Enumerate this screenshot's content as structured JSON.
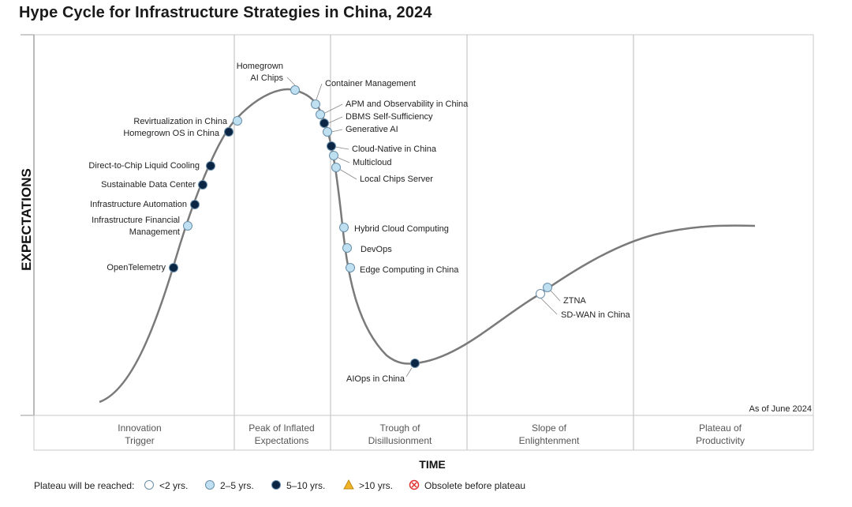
{
  "title": "Hype Cycle for Infrastructure Strategies in China, 2024",
  "chart_data": {
    "type": "scatter",
    "title": "Hype Cycle for Infrastructure Strategies in China, 2024",
    "xlabel": "TIME",
    "ylabel": "EXPECTATIONS",
    "as_of": "As of June 2024",
    "phases": [
      {
        "line1": "Innovation",
        "line2": "Trigger"
      },
      {
        "line1": "Peak of Inflated",
        "line2": "Expectations"
      },
      {
        "line1": "Trough of",
        "line2": "Disillusionment"
      },
      {
        "line1": "Slope of",
        "line2": "Enlightenment"
      },
      {
        "line1": "Plateau of",
        "line2": "Productivity"
      }
    ],
    "categories": {
      "lt2": {
        "label": "<2 yrs.",
        "fill": "#ffffff"
      },
      "2to5": {
        "label": "2–5 yrs.",
        "fill": "#bfe0f0"
      },
      "5to10": {
        "label": "5–10 yrs.",
        "fill": "#0b2545"
      },
      "gt10": {
        "label": ">10 yrs.",
        "fill": "#f0b429"
      },
      "obsolete": {
        "label": "Obsolete before plateau",
        "fill": "#e03030"
      }
    },
    "legend_title": "Plateau will be reached:",
    "points": [
      {
        "name": "OpenTelemetry",
        "cat": "5to10"
      },
      {
        "name": "Infrastructure Financial Management",
        "cat": "2to5"
      },
      {
        "name": "Infrastructure Automation",
        "cat": "5to10"
      },
      {
        "name": "Sustainable Data Center",
        "cat": "5to10"
      },
      {
        "name": "Direct-to-Chip Liquid Cooling",
        "cat": "5to10"
      },
      {
        "name": "Homegrown OS in China",
        "cat": "5to10"
      },
      {
        "name": "Revirtualization in China",
        "cat": "2to5"
      },
      {
        "name": "Homegrown AI Chips",
        "cat": "2to5"
      },
      {
        "name": "Container Management",
        "cat": "2to5"
      },
      {
        "name": "APM and Observability in China",
        "cat": "2to5"
      },
      {
        "name": "DBMS Self-Sufficiency",
        "cat": "5to10"
      },
      {
        "name": "Generative AI",
        "cat": "2to5"
      },
      {
        "name": "Cloud-Native in China",
        "cat": "5to10"
      },
      {
        "name": "Multicloud",
        "cat": "2to5"
      },
      {
        "name": "Local Chips Server",
        "cat": "2to5"
      },
      {
        "name": "Hybrid Cloud Computing",
        "cat": "2to5"
      },
      {
        "name": "DevOps",
        "cat": "2to5"
      },
      {
        "name": "Edge Computing in China",
        "cat": "2to5"
      },
      {
        "name": "AIOps in China",
        "cat": "5to10"
      },
      {
        "name": "ZTNA",
        "cat": "2to5"
      },
      {
        "name": "SD-WAN in China",
        "cat": "lt2"
      }
    ]
  }
}
